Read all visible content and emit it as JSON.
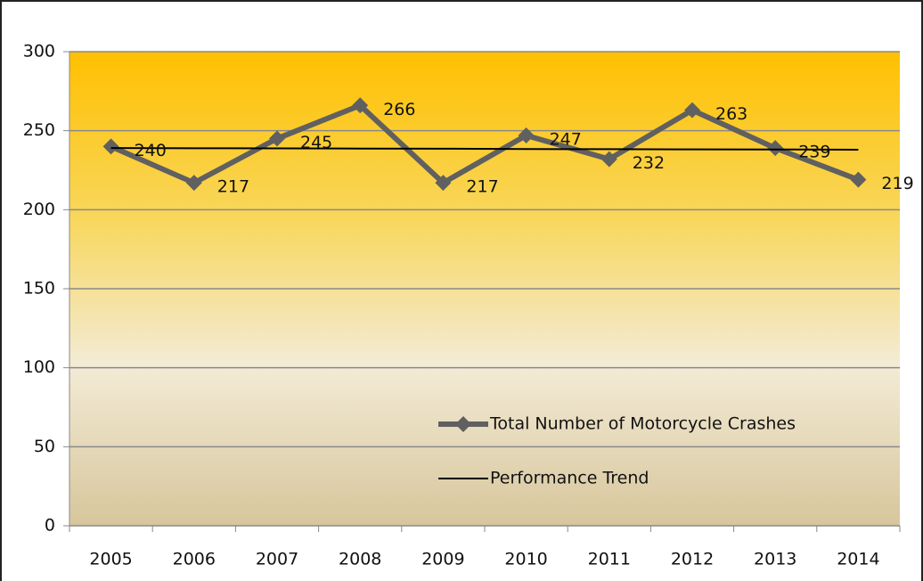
{
  "chart_data": {
    "type": "line",
    "categories": [
      "2005",
      "2006",
      "2007",
      "2008",
      "2009",
      "2010",
      "2011",
      "2012",
      "2013",
      "2014"
    ],
    "series": [
      {
        "name": "Total Number of Motorcycle Crashes",
        "color": "#606060",
        "marker": "diamond",
        "values": [
          240,
          217,
          245,
          266,
          217,
          247,
          232,
          263,
          239,
          219
        ]
      },
      {
        "name": "Performance Trend",
        "color": "#000000",
        "marker": "none",
        "values": [
          239.0,
          238.9,
          238.8,
          238.7,
          238.6,
          238.4,
          238.3,
          238.2,
          238.1,
          238.0
        ]
      }
    ],
    "data_labels_series": 0,
    "ylim": [
      0,
      300
    ],
    "yticks": [
      0,
      50,
      100,
      150,
      200,
      250,
      300
    ],
    "grid": true,
    "legend": "lower right"
  }
}
